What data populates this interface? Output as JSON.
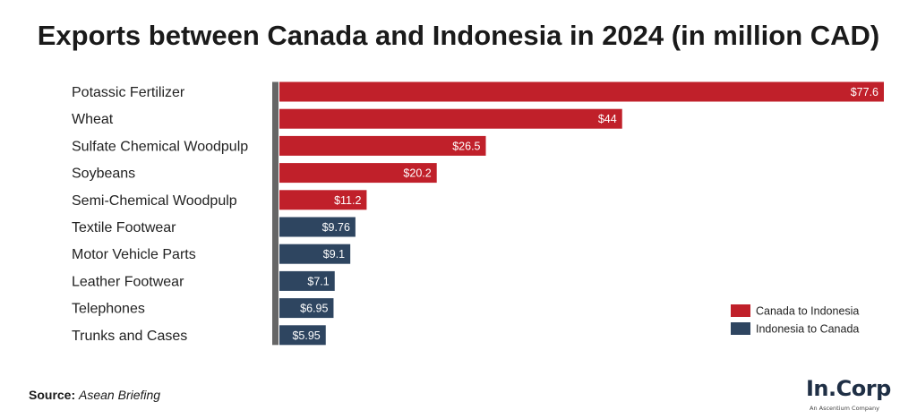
{
  "chart_data": {
    "type": "bar",
    "orientation": "horizontal",
    "title": "Exports between Canada and Indonesia in 2024 (in million CAD)",
    "categories": [
      "Potassic Fertilizer",
      "Wheat",
      "Sulfate Chemical Woodpulp",
      "Soybeans",
      "Semi-Chemical Woodpulp",
      "Textile Footwear",
      "Motor Vehicle Parts",
      "Leather Footwear",
      "Telephones",
      "Trunks and Cases"
    ],
    "values": [
      77.6,
      44,
      26.5,
      20.2,
      11.2,
      9.76,
      9.1,
      7.1,
      6.95,
      5.95
    ],
    "value_labels": [
      "$77.6",
      "$44",
      "$26.5",
      "$20.2",
      "$11.2",
      "$9.76",
      "$9.1",
      "$7.1",
      "$6.95",
      "$5.95"
    ],
    "series_membership": [
      0,
      0,
      0,
      0,
      0,
      1,
      1,
      1,
      1,
      1
    ],
    "series": [
      {
        "name": "Canada to Indonesia",
        "color": "#c0202a"
      },
      {
        "name": "Indonesia to Canada",
        "color": "#2e4560"
      }
    ],
    "xlim": [
      0,
      77.6
    ],
    "grid": false,
    "legend_position": "bottom-right"
  },
  "source": {
    "label": "Source:",
    "value": "Asean Briefing"
  },
  "logo": {
    "text": "In.Corp",
    "tagline": "An Ascentium Company"
  },
  "colors": {
    "axis": "#666666"
  }
}
